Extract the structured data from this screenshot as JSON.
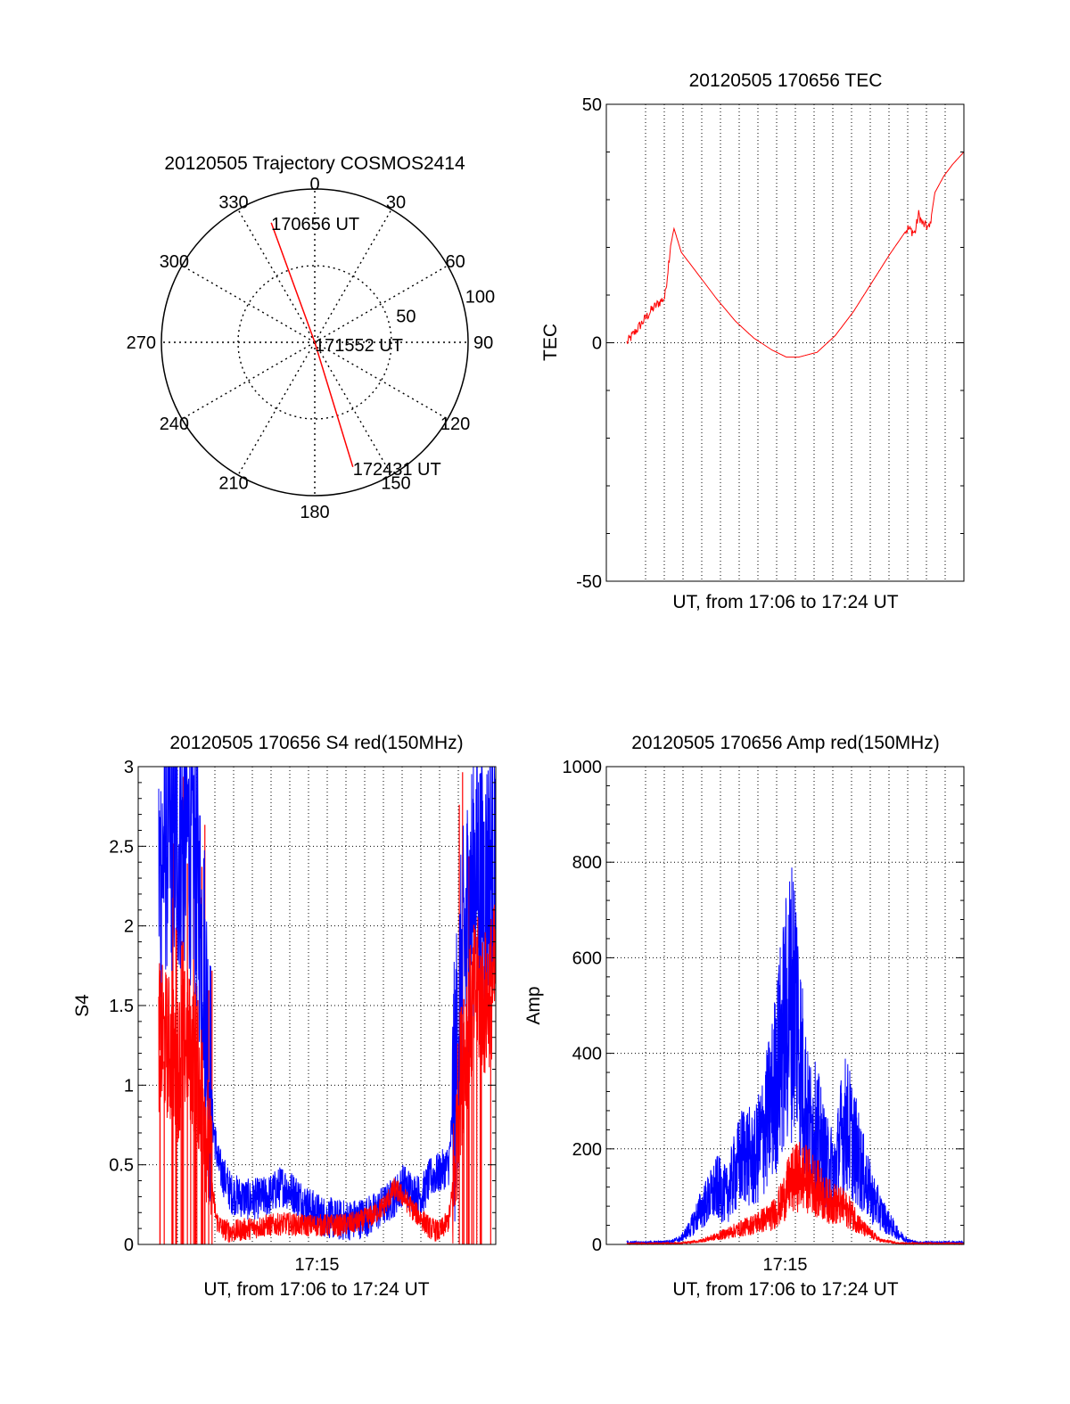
{
  "chart_data": [
    {
      "type": "polar",
      "title": "20120505 Trajectory COSMOS2414",
      "angle_labels": [
        "0",
        "30",
        "60",
        "90",
        "120",
        "150",
        "180",
        "210",
        "240",
        "270",
        "300",
        "330"
      ],
      "angle_values": [
        0,
        30,
        60,
        90,
        120,
        150,
        180,
        210,
        240,
        270,
        300,
        330
      ],
      "radius_labels": [
        "50",
        "100"
      ],
      "radius_values": [
        50,
        100
      ],
      "rmax": 100,
      "grid": true,
      "trajectory": {
        "color": "#ff0000",
        "points": [
          {
            "az": 340,
            "r": 83
          },
          {
            "az": 0,
            "r": 0
          },
          {
            "az": 163,
            "r": 85
          }
        ]
      },
      "annotations": [
        {
          "text": "170656 UT",
          "az": 340,
          "r": 83
        },
        {
          "text": "171552 UT",
          "az": 0,
          "r": 0
        },
        {
          "text": "172431 UT",
          "az": 163,
          "r": 85
        }
      ]
    },
    {
      "type": "line",
      "title": "20120505 170656 TEC",
      "xlabel": "UT, from 17:06 to 17:24 UT",
      "ylabel": "TEC",
      "xlim": [
        0,
        18.6
      ],
      "ylim": [
        -50,
        50
      ],
      "yticks": [
        "50",
        "0",
        "-50"
      ],
      "ytick_values": [
        50,
        0,
        -50
      ],
      "grid": true,
      "series": [
        {
          "color": "#ff0000",
          "x": [
            0,
            0.3,
            0.6,
            1.0,
            1.4,
            1.8,
            2.1,
            2.4,
            2.6,
            3.0,
            4.0,
            5.0,
            6.0,
            7.0,
            8.0,
            8.8,
            9.5,
            10.5,
            11.5,
            12.5,
            13.5,
            14.5,
            15.5,
            15.9,
            16.1,
            16.3,
            16.7,
            17.0,
            17.5,
            18.0,
            18.6
          ],
          "y": [
            0,
            1.5,
            3.0,
            5.0,
            7.0,
            8.5,
            9.5,
            20.0,
            24.0,
            19.0,
            14.0,
            9.0,
            4.5,
            1.0,
            -1.5,
            -3.0,
            -3.0,
            -2.0,
            1.5,
            6.5,
            12.5,
            18.5,
            24.0,
            23.0,
            27.0,
            25.0,
            24.0,
            31.5,
            35.0,
            37.5,
            40.0
          ]
        }
      ]
    },
    {
      "type": "line",
      "title": "20120505 170656 S4 red(150MHz)",
      "xlabel": "UT, from 17:06 to 17:24 UT",
      "ylabel": "S4",
      "xlim": [
        0,
        18.6
      ],
      "ylim": [
        0,
        3
      ],
      "xticks": [
        "17:15"
      ],
      "xtick_values": [
        9.3
      ],
      "yticks": [
        "0",
        "0.5",
        "1",
        "1.5",
        "2",
        "2.5",
        "3"
      ],
      "ytick_values": [
        0,
        0.5,
        1,
        1.5,
        2,
        2.5,
        3
      ],
      "grid": true,
      "series": [
        {
          "color": "#0000ff",
          "x": [
            0,
            0.5,
            1.0,
            1.5,
            2.0,
            2.5,
            2.8,
            3.0,
            3.3,
            4.0,
            5.0,
            6.0,
            6.8,
            7.5,
            8.3,
            9.0,
            10.0,
            11.0,
            11.8,
            12.5,
            13.0,
            13.5,
            14.0,
            14.5,
            15.0,
            15.5,
            16.0,
            16.3,
            16.6,
            17.0,
            17.5,
            18.0,
            18.6
          ],
          "y": [
            2.3,
            2.6,
            2.5,
            2.6,
            2.4,
            1.8,
            1.1,
            0.75,
            0.5,
            0.32,
            0.28,
            0.3,
            0.37,
            0.32,
            0.23,
            0.18,
            0.15,
            0.16,
            0.19,
            0.25,
            0.3,
            0.38,
            0.33,
            0.3,
            0.42,
            0.45,
            0.5,
            0.9,
            1.5,
            2.0,
            2.4,
            2.2,
            2.6
          ]
        },
        {
          "color": "#ff0000",
          "x": [
            0,
            0.5,
            1.0,
            1.5,
            2.0,
            2.5,
            2.8,
            3.0,
            3.2,
            3.5,
            4.0,
            5.0,
            6.0,
            7.0,
            8.0,
            9.0,
            10.0,
            11.0,
            11.8,
            12.5,
            13.0,
            13.5,
            14.0,
            14.5,
            15.0,
            15.5,
            16.0,
            16.3,
            16.6,
            17.0,
            17.5,
            18.0,
            18.6
          ],
          "y": [
            1.3,
            1.25,
            1.1,
            1.3,
            1.15,
            0.9,
            0.5,
            0.3,
            0.15,
            0.1,
            0.08,
            0.1,
            0.12,
            0.13,
            0.12,
            0.12,
            0.12,
            0.14,
            0.18,
            0.25,
            0.35,
            0.3,
            0.22,
            0.16,
            0.1,
            0.08,
            0.15,
            0.4,
            1.0,
            1.3,
            1.6,
            1.5,
            1.7
          ]
        }
      ]
    },
    {
      "type": "line",
      "title": "20120505 170656 Amp red(150MHz)",
      "xlabel": "UT, from 17:06 to 17:24 UT",
      "ylabel": "Amp",
      "xlim": [
        0,
        18.6
      ],
      "ylim": [
        0,
        1000
      ],
      "xticks": [
        "17:15"
      ],
      "xtick_values": [
        9.3
      ],
      "yticks": [
        "0",
        "200",
        "400",
        "600",
        "800",
        "1000"
      ],
      "ytick_values": [
        0,
        200,
        400,
        600,
        800,
        1000
      ],
      "grid": true,
      "series": [
        {
          "color": "#0000ff",
          "x": [
            0,
            1.5,
            2.5,
            3.0,
            3.5,
            4.0,
            4.5,
            5.0,
            5.5,
            6.0,
            6.5,
            7.0,
            7.5,
            8.0,
            8.5,
            9.0,
            9.3,
            9.6,
            10.0,
            10.5,
            11.0,
            11.5,
            11.8,
            12.1,
            12.5,
            13.0,
            13.5,
            14.0,
            14.5,
            15.0,
            15.5,
            16.0,
            17.0,
            18.6
          ],
          "y": [
            5,
            5,
            8,
            15,
            40,
            80,
            110,
            140,
            120,
            180,
            230,
            200,
            270,
            350,
            480,
            600,
            620,
            450,
            300,
            280,
            200,
            180,
            260,
            300,
            250,
            180,
            120,
            80,
            50,
            25,
            10,
            5,
            5,
            5
          ]
        },
        {
          "color": "#ff0000",
          "x": [
            0,
            3.0,
            4.0,
            5.0,
            6.0,
            7.0,
            8.0,
            8.5,
            9.0,
            9.5,
            10.0,
            10.5,
            11.0,
            11.5,
            12.0,
            12.5,
            13.0,
            13.5,
            14.0,
            15.0,
            18.6
          ],
          "y": [
            2,
            3,
            8,
            20,
            35,
            50,
            70,
            100,
            150,
            170,
            160,
            140,
            110,
            100,
            90,
            70,
            40,
            25,
            10,
            3,
            2
          ]
        }
      ]
    }
  ]
}
